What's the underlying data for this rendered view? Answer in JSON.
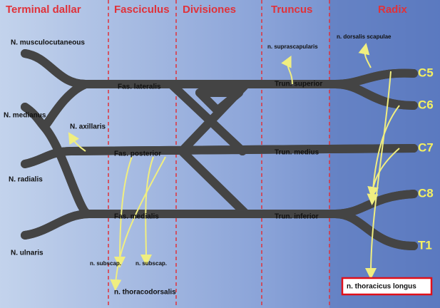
{
  "columns": [
    "Terminal dallar",
    "Fasciculus",
    "Divisiones",
    "Truncus",
    "Radix"
  ],
  "cords": [
    "Fas. lateralis",
    "Fas. posterior",
    "Fas. medialis"
  ],
  "trunks": [
    "Trun. superior",
    "Trun. medius",
    "Trun. inferior"
  ],
  "roots": [
    "C5",
    "C6",
    "C7",
    "C8",
    "T1"
  ],
  "terminal_nerves": [
    "N. musculocutaneous",
    "N. medianus",
    "N. axillaris",
    "N. radialis",
    "N. ulnaris"
  ],
  "branches": [
    "n. subscap.",
    "n. subscap.",
    "n. thoracodorsalis",
    "n. suprascapularis",
    "n. dorsalis scapulae",
    "n. thoracicus longus"
  ]
}
